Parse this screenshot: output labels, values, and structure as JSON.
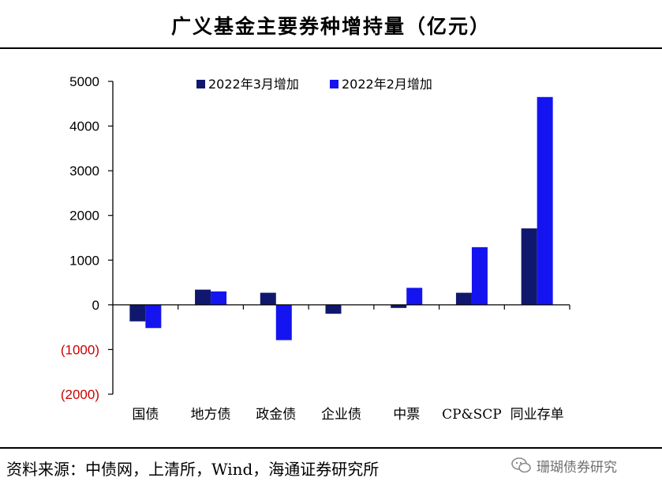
{
  "header": {
    "title": "广义基金主要券种增持量（亿元）"
  },
  "chart_data": {
    "type": "bar",
    "title": "广义基金主要券种增持量（亿元）",
    "categories": [
      "国债",
      "地方债",
      "政金债",
      "企业债",
      "中票",
      "CP&SCP",
      "同业存单"
    ],
    "series": [
      {
        "name": "2022年3月增加",
        "color": "#10186e",
        "values": [
          -370,
          340,
          270,
          -200,
          -70,
          270,
          1710
        ]
      },
      {
        "name": "2022年2月增加",
        "color": "#1414f0",
        "values": [
          -520,
          300,
          -790,
          0,
          380,
          1290,
          4650
        ]
      }
    ],
    "ylim": [
      -2000,
      5000
    ],
    "yticks": [
      5000,
      4000,
      3000,
      2000,
      1000,
      0,
      -1000,
      -2000
    ],
    "ytick_labels": [
      "5000",
      "4000",
      "3000",
      "2000",
      "1000",
      "0",
      "(1000)",
      "(2000)"
    ],
    "negative_label_color": "#cc0000",
    "xlabel": "",
    "ylabel": "",
    "legend_position": "top"
  },
  "footer": {
    "source": "资料来源：中债网，上清所，Wind，海通证券研究所",
    "watermark": "珊瑚债券研究"
  }
}
